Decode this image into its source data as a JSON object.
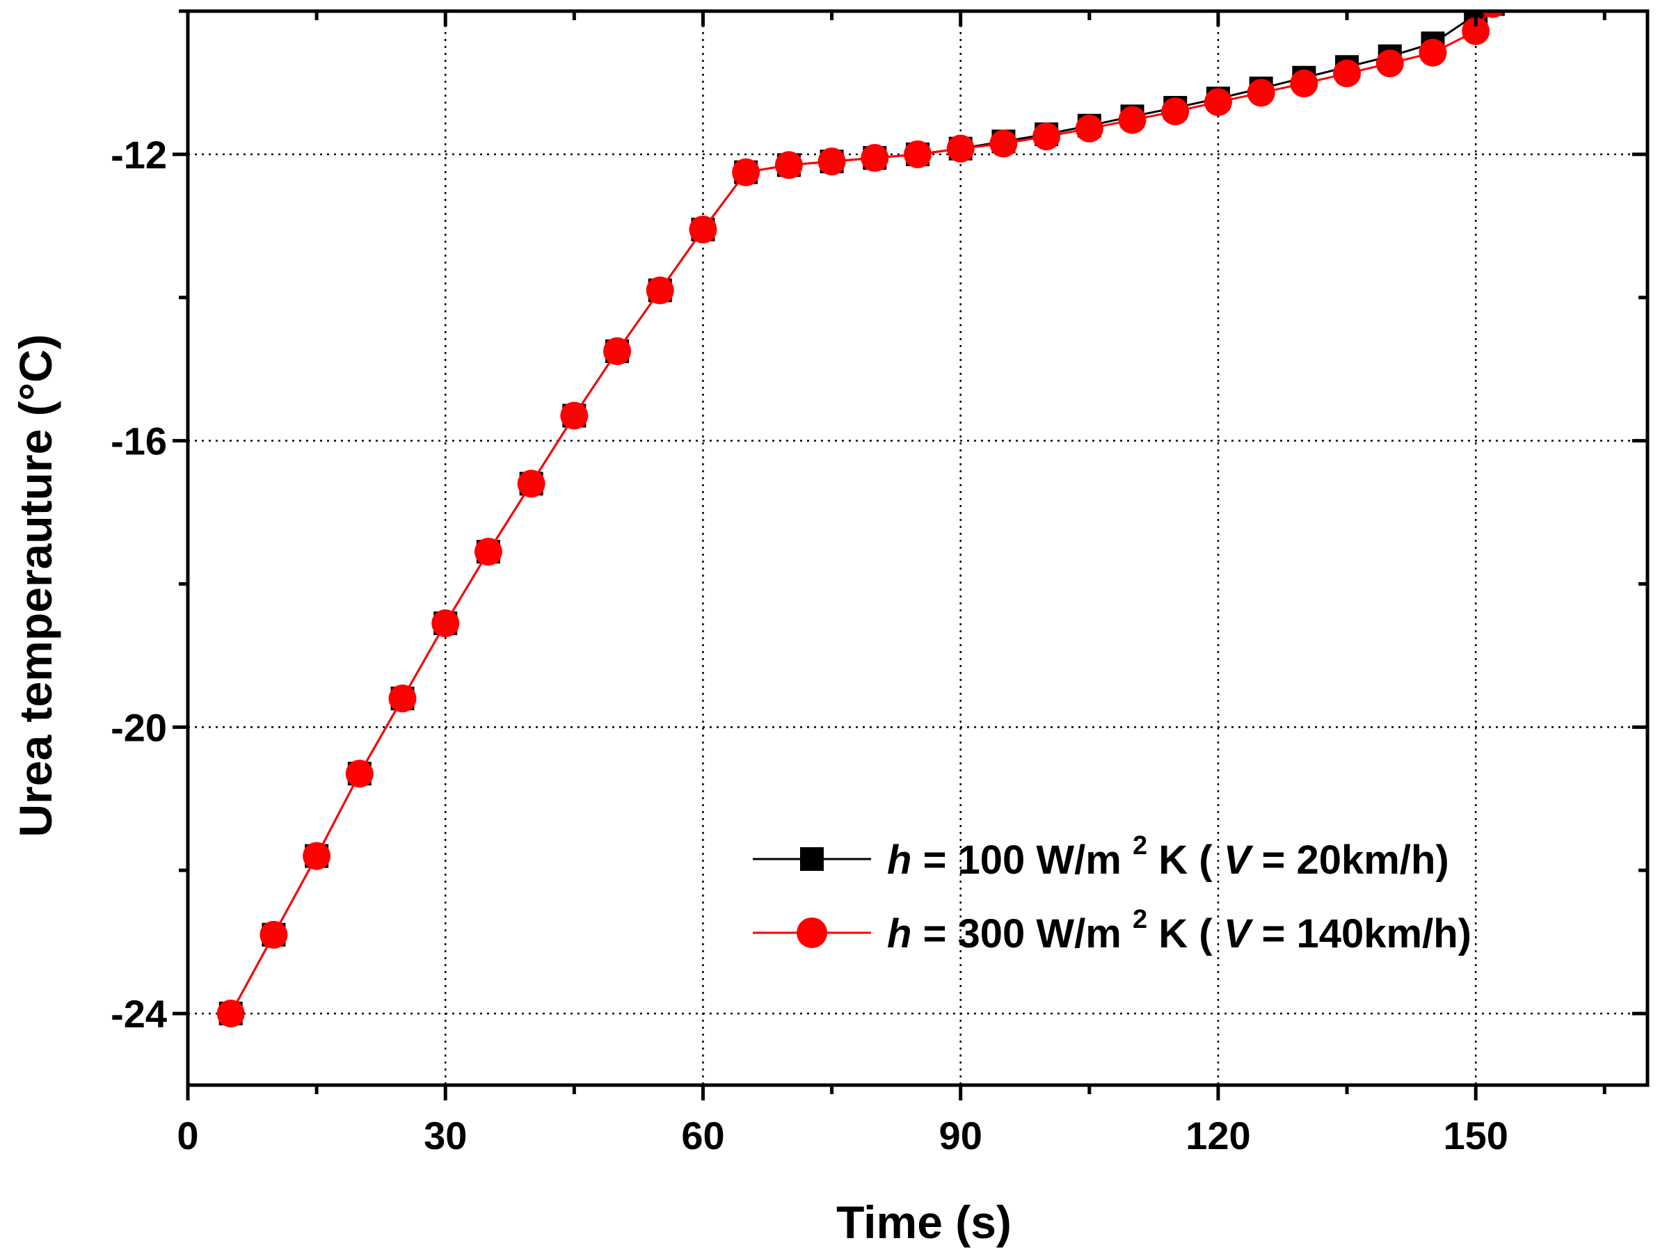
{
  "chart_data": {
    "type": "line",
    "title": "",
    "xlabel": "Time (s)",
    "ylabel": "Urea temperauture (°C)",
    "xlim": [
      0,
      170
    ],
    "ylim": [
      -25,
      -10
    ],
    "xticks": [
      0,
      30,
      60,
      90,
      120,
      150
    ],
    "yticks": [
      -24,
      -20,
      -16,
      -12
    ],
    "grid": true,
    "legend_position": "bottom-right",
    "series": [
      {
        "name": "h = 100 W/m2K ( V= 20km/h)",
        "legend_parts": {
          "h": "h",
          "eq": "= 100 W/m",
          "sup": "2",
          "unit": "K (",
          "v": "V",
          "rest": "= 20km/h)"
        },
        "marker": "square",
        "color": "#000000",
        "x": [
          5,
          10,
          15,
          20,
          25,
          30,
          35,
          40,
          45,
          50,
          55,
          60,
          65,
          70,
          75,
          80,
          85,
          90,
          95,
          100,
          105,
          110,
          115,
          120,
          125,
          130,
          135,
          140,
          145,
          150,
          152
        ],
        "y": [
          -24.0,
          -22.9,
          -21.8,
          -20.65,
          -19.6,
          -18.55,
          -17.55,
          -16.6,
          -15.65,
          -14.75,
          -13.9,
          -13.05,
          -12.25,
          -12.15,
          -12.1,
          -12.05,
          -12.0,
          -11.92,
          -11.82,
          -11.72,
          -11.6,
          -11.47,
          -11.35,
          -11.22,
          -11.08,
          -10.93,
          -10.78,
          -10.63,
          -10.45,
          -10.05,
          -9.9
        ]
      },
      {
        "name": "h = 300 W/m2K ( V= 140km/h)",
        "legend_parts": {
          "h": "h",
          "eq": "= 300 W/m",
          "sup": "2",
          "unit": "K (",
          "v": "V",
          "rest": "= 140km/h)"
        },
        "marker": "circle",
        "color": "#ff0000",
        "x": [
          5,
          10,
          15,
          20,
          25,
          30,
          35,
          40,
          45,
          50,
          55,
          60,
          65,
          70,
          75,
          80,
          85,
          90,
          95,
          100,
          105,
          110,
          115,
          120,
          125,
          130,
          135,
          140,
          145,
          150,
          152
        ],
        "y": [
          -24.0,
          -22.9,
          -21.8,
          -20.65,
          -19.6,
          -18.55,
          -17.55,
          -16.6,
          -15.65,
          -14.75,
          -13.9,
          -13.05,
          -12.25,
          -12.15,
          -12.1,
          -12.05,
          -12.0,
          -11.92,
          -11.85,
          -11.75,
          -11.64,
          -11.52,
          -11.4,
          -11.27,
          -11.14,
          -11.01,
          -10.87,
          -10.73,
          -10.58,
          -10.28,
          -9.9
        ]
      }
    ]
  }
}
